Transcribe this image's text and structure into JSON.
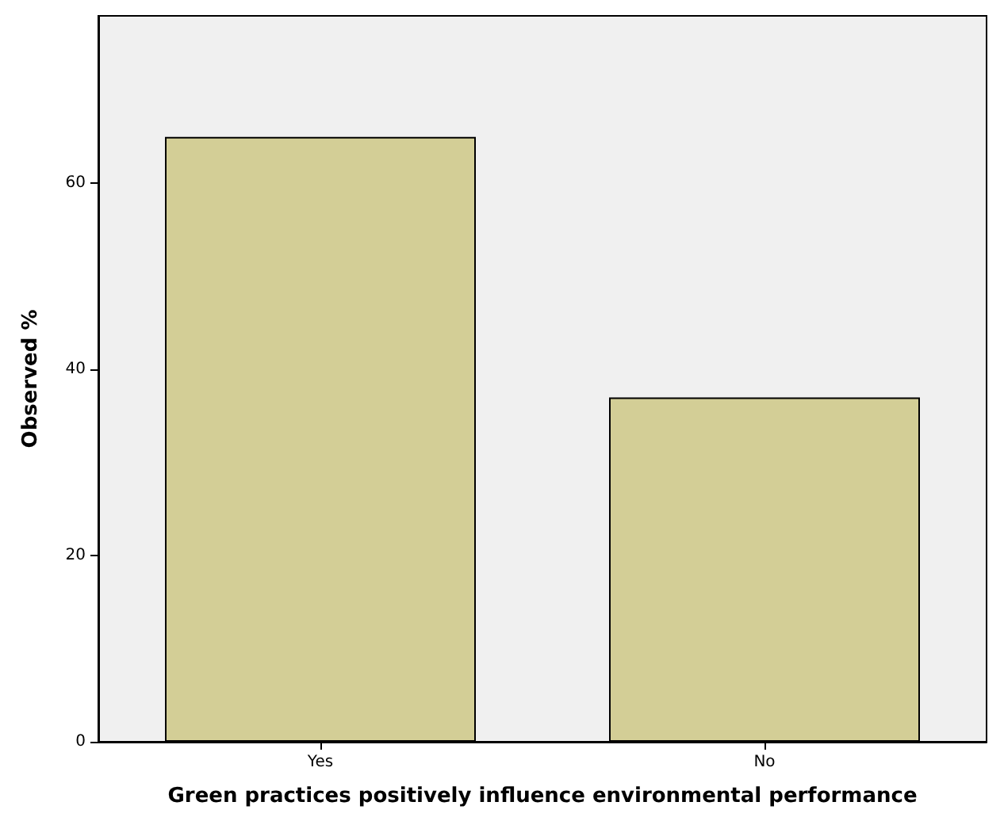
{
  "chart_data": {
    "type": "bar",
    "xlabel": "Green practices positively influence environmental performance",
    "ylabel": "Observed %",
    "categories": [
      "Yes",
      "No"
    ],
    "values": [
      65,
      37
    ],
    "color": "#d3ce96",
    "ylim": [
      0,
      78
    ],
    "yticks": [
      0,
      20,
      40,
      60
    ],
    "grid": false
  }
}
